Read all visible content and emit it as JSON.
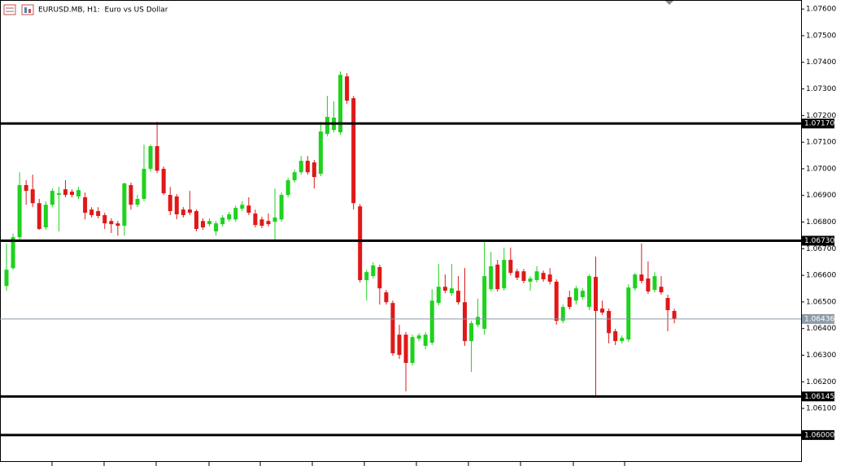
{
  "chart_data": {
    "type": "candlestick",
    "title": "EURUSD.MB, H1:  Euro vs US Dollar",
    "ylim": [
      1.05899,
      1.07634
    ],
    "yticks": [
      {
        "value": 1.076,
        "label": "1.07600"
      },
      {
        "value": 1.075,
        "label": "1.07500"
      },
      {
        "value": 1.074,
        "label": "1.07400"
      },
      {
        "value": 1.073,
        "label": "1.07300"
      },
      {
        "value": 1.072,
        "label": "1.07200"
      },
      {
        "value": 1.071,
        "label": "1.07100"
      },
      {
        "value": 1.07,
        "label": "1.07000"
      },
      {
        "value": 1.069,
        "label": "1.06900"
      },
      {
        "value": 1.068,
        "label": "1.06800"
      },
      {
        "value": 1.067,
        "label": "1.06700"
      },
      {
        "value": 1.066,
        "label": "1.06600"
      },
      {
        "value": 1.065,
        "label": "1.06500"
      },
      {
        "value": 1.064,
        "label": "1.06400"
      },
      {
        "value": 1.063,
        "label": "1.06300"
      },
      {
        "value": 1.062,
        "label": "1.06200"
      },
      {
        "value": 1.061,
        "label": "1.06100"
      }
    ],
    "up_color": "#1ed21e",
    "down_color": "#e01818",
    "level_color": "#000000",
    "last_color": "#8c9ba8",
    "levels": [
      {
        "value": 1.0717,
        "label": "1.07170"
      },
      {
        "value": 1.0673,
        "label": "1.06730"
      },
      {
        "value": 1.06145,
        "label": "1.06145"
      },
      {
        "value": 1.06,
        "label": "1.06000"
      }
    ],
    "last_price": {
      "value": 1.06436,
      "label": "1.06436"
    },
    "open": [
      1.0656,
      1.06627,
      1.06743,
      1.06939,
      1.06923,
      1.06871,
      1.0678,
      1.06865,
      1.06902,
      1.06923,
      1.06914,
      1.06896,
      1.06893,
      1.06847,
      1.06841,
      1.06826,
      1.06804,
      1.06795,
      1.06786,
      1.06939,
      1.06865,
      1.06887,
      1.07,
      1.07085,
      1.07,
      1.06902,
      1.06896,
      1.06847,
      1.06847,
      1.06841,
      1.06804,
      1.06792,
      1.06765,
      1.06792,
      1.0681,
      1.0681,
      1.0685,
      1.06862,
      1.06832,
      1.0681,
      1.06804,
      1.06801,
      1.0681,
      1.06902,
      1.06957,
      1.06987,
      1.0703,
      1.07024,
      1.06981,
      1.07131,
      1.07146,
      1.07137,
      1.07347,
      1.07265,
      1.06859,
      1.06582,
      1.06597,
      1.06631,
      1.06536,
      1.06496,
      1.06377,
      1.06377,
      1.06271,
      1.06362,
      1.06335,
      1.06347,
      1.06496,
      1.06557,
      1.06533,
      1.06542,
      1.06499,
      1.06353,
      1.06414,
      1.06399,
      1.06548,
      1.0664,
      1.06551,
      1.06658,
      1.06615,
      1.06615,
      1.06576,
      1.06582,
      1.06609,
      1.06603,
      1.06576,
      1.06429,
      1.06518,
      1.06505,
      1.06518,
      1.06481,
      1.06594,
      1.06475,
      1.06466,
      1.0639,
      1.06353,
      1.06359,
      1.06551,
      1.06603,
      1.06588,
      1.06545,
      1.06557,
      1.06515,
      1.06466
    ],
    "high": [
      1.06719,
      1.06756,
      1.06987,
      1.06957,
      1.06978,
      1.06887,
      1.06878,
      1.06926,
      1.06932,
      1.06957,
      1.06923,
      1.06932,
      1.06911,
      1.06856,
      1.06856,
      1.06835,
      1.06814,
      1.06804,
      1.06948,
      1.06948,
      1.06902,
      1.07091,
      1.07091,
      1.07176,
      1.07009,
      1.06932,
      1.06905,
      1.06856,
      1.06917,
      1.06847,
      1.06814,
      1.06814,
      1.06804,
      1.06826,
      1.06838,
      1.06862,
      1.06878,
      1.06893,
      1.06847,
      1.0682,
      1.06832,
      1.06926,
      1.06911,
      1.06966,
      1.06997,
      1.07048,
      1.07048,
      1.07033,
      1.07176,
      1.07274,
      1.07253,
      1.07366,
      1.07359,
      1.07274,
      1.06868,
      1.06621,
      1.06649,
      1.0664,
      1.06545,
      1.06505,
      1.06414,
      1.06387,
      1.06377,
      1.06383,
      1.06387,
      1.06548,
      1.06643,
      1.06603,
      1.06643,
      1.06597,
      1.06627,
      1.06429,
      1.06512,
      1.06728,
      1.06688,
      1.06658,
      1.06704,
      1.06704,
      1.06624,
      1.06624,
      1.06597,
      1.06634,
      1.06618,
      1.06627,
      1.06585,
      1.0649,
      1.06542,
      1.0656,
      1.06551,
      1.06603,
      1.0667,
      1.06505,
      1.06475,
      1.06399,
      1.06374,
      1.06566,
      1.06609,
      1.06719,
      1.06652,
      1.06612,
      1.06597,
      1.06527,
      1.06475
    ],
    "low": [
      1.06542,
      1.06621,
      1.06734,
      1.06865,
      1.06856,
      1.06771,
      1.06771,
      1.06856,
      1.06765,
      1.06893,
      1.06893,
      1.06887,
      1.0681,
      1.06817,
      1.06814,
      1.06774,
      1.06759,
      1.06749,
      1.06749,
      1.06847,
      1.06856,
      1.06878,
      1.0699,
      1.06984,
      1.06902,
      1.06826,
      1.0681,
      1.06817,
      1.06826,
      1.06765,
      1.06771,
      1.06783,
      1.06749,
      1.06783,
      1.06801,
      1.06801,
      1.06841,
      1.06826,
      1.0678,
      1.06777,
      1.06783,
      1.06734,
      1.06801,
      1.06893,
      1.06948,
      1.06978,
      1.06978,
      1.06926,
      1.06972,
      1.07122,
      1.07137,
      1.07128,
      1.07244,
      1.06847,
      1.06573,
      1.06505,
      1.06588,
      1.0649,
      1.0649,
      1.06298,
      1.06286,
      1.06164,
      1.06261,
      1.06353,
      1.06322,
      1.06338,
      1.06487,
      1.06533,
      1.06524,
      1.0649,
      1.06335,
      1.06237,
      1.06405,
      1.06377,
      1.06539,
      1.06539,
      1.06542,
      1.066,
      1.06582,
      1.0657,
      1.06542,
      1.06573,
      1.06576,
      1.06566,
      1.06414,
      1.0642,
      1.06472,
      1.0649,
      1.06509,
      1.06469,
      1.06146,
      1.06451,
      1.06344,
      1.06338,
      1.06344,
      1.0635,
      1.06542,
      1.0657,
      1.0653,
      1.06536,
      1.06527,
      1.0639,
      1.0642
    ],
    "close": [
      1.06621,
      1.06743,
      1.06939,
      1.06917,
      1.06871,
      1.06774,
      1.06865,
      1.06917,
      1.06908,
      1.06902,
      1.06902,
      1.0692,
      1.06835,
      1.06826,
      1.06823,
      1.06795,
      1.06792,
      1.06786,
      1.06945,
      1.06865,
      1.06887,
      1.07,
      1.07085,
      1.06993,
      1.06908,
      1.06841,
      1.06829,
      1.06826,
      1.06835,
      1.06774,
      1.0678,
      1.06804,
      1.06795,
      1.06817,
      1.06829,
      1.06853,
      1.06865,
      1.06835,
      1.06789,
      1.06786,
      1.06792,
      1.06817,
      1.06902,
      1.06957,
      1.06987,
      1.0703,
      1.06987,
      1.06969,
      1.0714,
      1.07195,
      1.07192,
      1.07353,
      1.07256,
      1.06871,
      1.06582,
      1.06612,
      1.06637,
      1.06551,
      1.06499,
      1.06307,
      1.06301,
      1.06271,
      1.06368,
      1.06374,
      1.06377,
      1.06505,
      1.06557,
      1.06542,
      1.06551,
      1.06499,
      1.06353,
      1.0642,
      1.06444,
      1.06597,
      1.06634,
      1.06548,
      1.06658,
      1.06609,
      1.06591,
      1.06579,
      1.06588,
      1.06615,
      1.06585,
      1.06576,
      1.06429,
      1.06481,
      1.06481,
      1.06551,
      1.06542,
      1.06597,
      1.06466,
      1.0646,
      1.06383,
      1.06353,
      1.06365,
      1.06554,
      1.06603,
      1.06579,
      1.06539,
      1.06597,
      1.06536,
      1.06469,
      1.06436
    ]
  }
}
